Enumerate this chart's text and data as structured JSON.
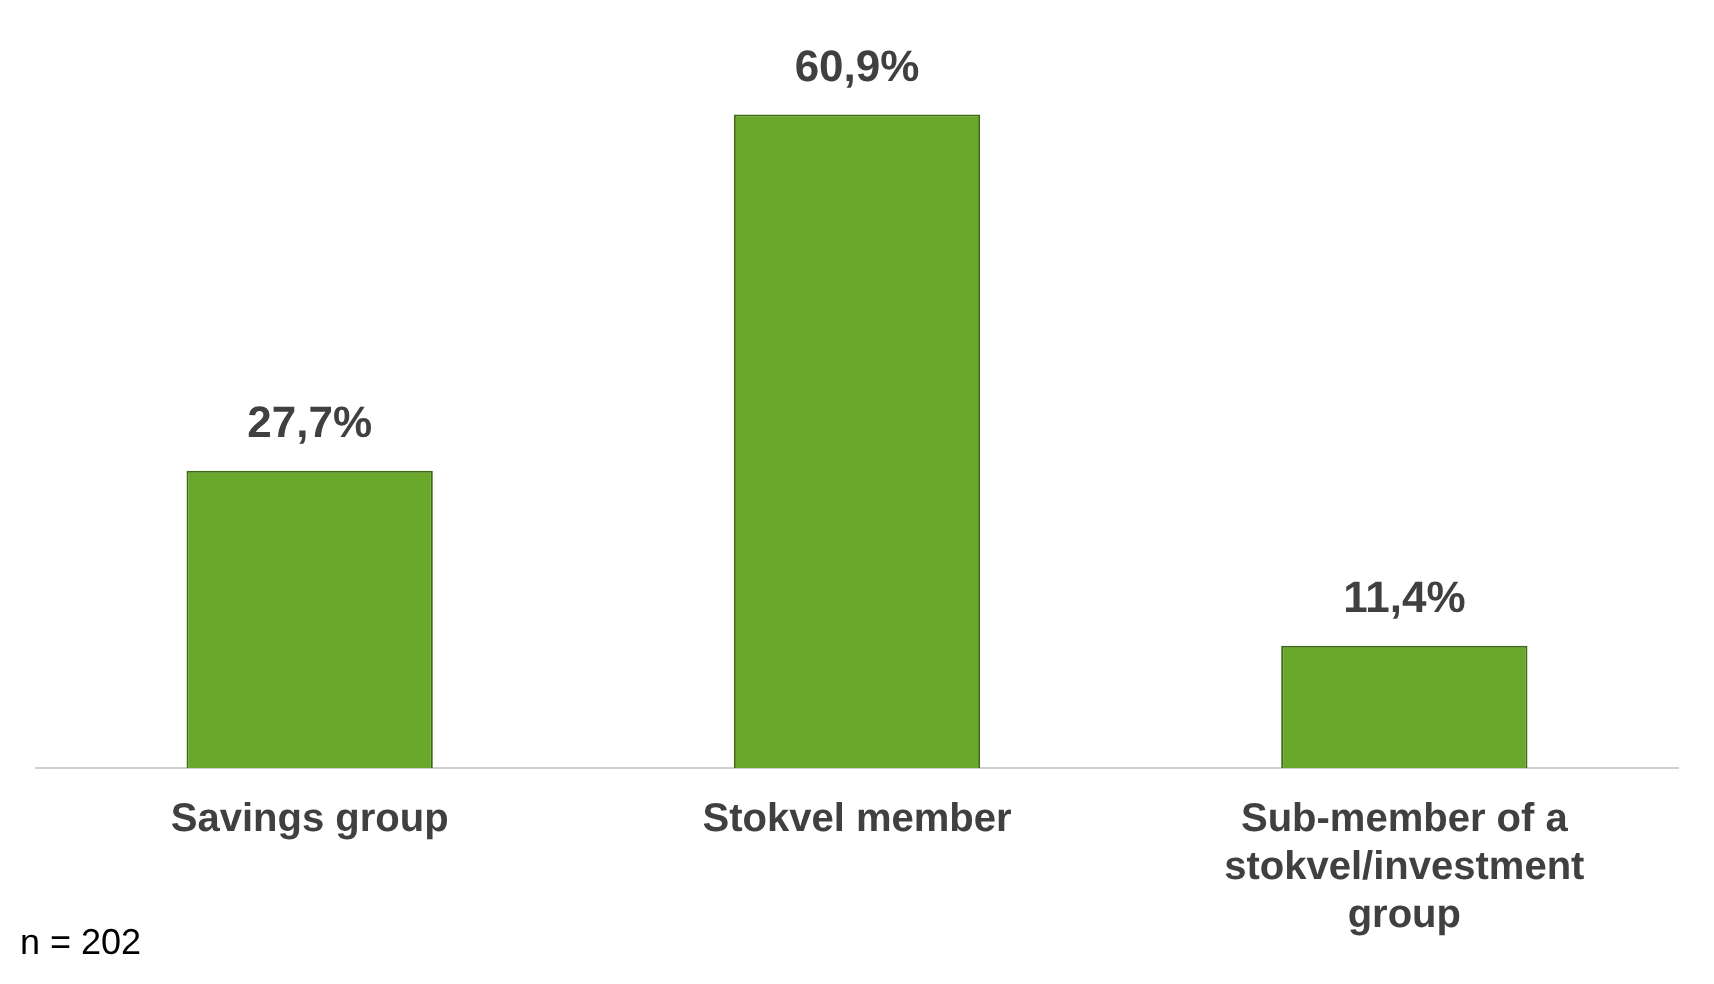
{
  "chart_data": {
    "type": "bar",
    "categories": [
      "Savings group",
      "Stokvel member",
      "Sub-member of a stokvel/investment group"
    ],
    "values": [
      27.7,
      60.9,
      11.4
    ],
    "value_labels": [
      "27,7%",
      "60,9%",
      "11,4%"
    ],
    "color": "#6aa82c",
    "grid": false,
    "legend": false,
    "tick_labels": "x",
    "annotations": [
      "n = 202"
    ]
  }
}
